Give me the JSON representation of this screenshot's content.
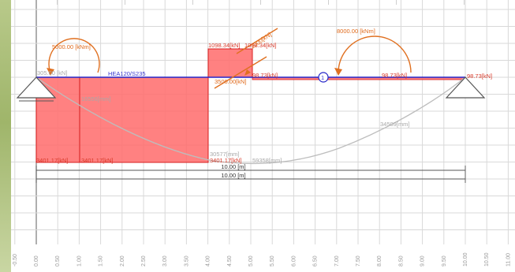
{
  "beam": {
    "section_label": "HEA120/S235"
  },
  "moments": {
    "left_label": "5000.00 [kNm]",
    "right_label": "8000.00 [kNm]"
  },
  "shear": {
    "top_left_label": "1098.34[kN]",
    "top_right_label": "1098.34[kN]",
    "bottom_1": "3401.17[kN]",
    "bottom_2": "3401.17[kN]",
    "bottom_3": "3401.17[kN]",
    "mid_1": "98.73[kN]",
    "mid_2": "98.73[kN]",
    "end": "98.73[kN]",
    "left_small": "305.00 [kN]"
  },
  "inclined_load": {
    "label_1": "3500.00[kN]",
    "label_2": "2000[kN]"
  },
  "node": {
    "label": "1"
  },
  "deflection": {
    "label_left": "16556[mm]",
    "label_mid": "30577[mm]",
    "label_mid2": "59358[mm]",
    "label_right": "34509[mm]"
  },
  "dimensions": {
    "dim_1": "10.00 [m]",
    "dim_2": "10.00 [m]"
  },
  "axis": {
    "x_ticks": [
      "-0.50",
      "0.00",
      "0.50",
      "1.00",
      "1.50",
      "2.00",
      "2.50",
      "3.00",
      "3.50",
      "4.00",
      "4.50",
      "5.00",
      "5.50",
      "6.00",
      "6.50",
      "7.00",
      "7.50",
      "8.00",
      "8.50",
      "9.00",
      "9.50",
      "10.00",
      "10.50",
      "11.00"
    ]
  },
  "colors": {
    "shear_fill": "#ff6b6b",
    "shear_stroke": "#d82020",
    "beam": "#2525c8",
    "moment_arc": "#e07020",
    "deflection": "#bdbdbd"
  }
}
